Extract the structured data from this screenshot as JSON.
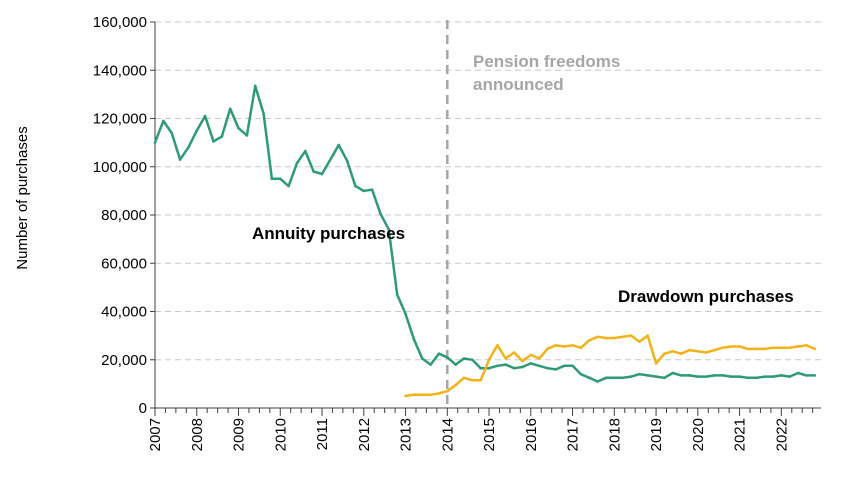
{
  "chart_data": {
    "type": "line",
    "ylabel": "Number of purchases",
    "ylim": [
      0,
      160000
    ],
    "y_ticks": [
      "0",
      "20,000",
      "40,000",
      "60,000",
      "80,000",
      "100,000",
      "120,000",
      "140,000",
      "160,000"
    ],
    "y_tick_values": [
      0,
      20000,
      40000,
      60000,
      80000,
      100000,
      120000,
      140000,
      160000
    ],
    "x_ticks": [
      "2007",
      "2008",
      "2009",
      "2010",
      "2011",
      "2012",
      "2013",
      "2014",
      "2015",
      "2016",
      "2017",
      "2018",
      "2019",
      "2020",
      "2021",
      "2022"
    ],
    "x_tick_values": [
      2007,
      2008,
      2009,
      2010,
      2011,
      2012,
      2013,
      2014,
      2015,
      2016,
      2017,
      2018,
      2019,
      2020,
      2021,
      2022
    ],
    "xlim": [
      2007,
      2022.95
    ],
    "grid": "horizontal dashed",
    "event": {
      "x": 2014,
      "label_line1": "Pension freedoms",
      "label_line2": "announced",
      "color": "#a6a6a6"
    },
    "series": [
      {
        "name": "Annuity purchases",
        "color": "#2e9b73",
        "x": [
          2007.0,
          2007.2,
          2007.4,
          2007.6,
          2007.8,
          2008.0,
          2008.2,
          2008.4,
          2008.6,
          2008.8,
          2009.0,
          2009.2,
          2009.4,
          2009.6,
          2009.8,
          2010.0,
          2010.2,
          2010.4,
          2010.6,
          2010.8,
          2011.0,
          2011.2,
          2011.4,
          2011.6,
          2011.8,
          2012.0,
          2012.2,
          2012.4,
          2012.6,
          2012.8,
          2013.0,
          2013.2,
          2013.4,
          2013.6,
          2013.8,
          2014.0,
          2014.2,
          2014.4,
          2014.6,
          2014.8,
          2015.0,
          2015.2,
          2015.4,
          2015.6,
          2015.8,
          2016.0,
          2016.2,
          2016.4,
          2016.6,
          2016.8,
          2017.0,
          2017.2,
          2017.4,
          2017.6,
          2017.8,
          2018.0,
          2018.2,
          2018.4,
          2018.6,
          2018.8,
          2019.0,
          2019.2,
          2019.4,
          2019.6,
          2019.8,
          2020.0,
          2020.2,
          2020.4,
          2020.6,
          2020.8,
          2021.0,
          2021.2,
          2021.4,
          2021.6,
          2021.8,
          2022.0,
          2022.2,
          2022.4,
          2022.6,
          2022.8
        ],
        "values": [
          110000,
          119000,
          114000,
          103000,
          108000,
          115000,
          121000,
          110500,
          112500,
          124000,
          116000,
          113000,
          133500,
          122000,
          95000,
          95000,
          92000,
          101500,
          106500,
          98000,
          97000,
          103000,
          109000,
          102500,
          92000,
          90000,
          90500,
          80500,
          74000,
          47000,
          39000,
          28500,
          20500,
          18000,
          22500,
          21000,
          18000,
          20500,
          20000,
          16500,
          16500,
          17500,
          18000,
          16500,
          17000,
          18500,
          17500,
          16500,
          16000,
          17500,
          17500,
          14000,
          12500,
          11000,
          12500,
          12500,
          12500,
          13000,
          14000,
          13500,
          13000,
          12500,
          14500,
          13500,
          13500,
          13000,
          13000,
          13500,
          13500,
          13000,
          13000,
          12500,
          12500,
          13000,
          13000,
          13500,
          13000,
          14500,
          13500,
          13500
        ]
      },
      {
        "name": "Drawdown purchases",
        "color": "#f2b318",
        "x": [
          2013.0,
          2013.2,
          2013.4,
          2013.6,
          2013.8,
          2014.0,
          2014.2,
          2014.4,
          2014.6,
          2014.8,
          2015.0,
          2015.2,
          2015.4,
          2015.6,
          2015.8,
          2016.0,
          2016.2,
          2016.4,
          2016.6,
          2016.8,
          2017.0,
          2017.2,
          2017.4,
          2017.6,
          2017.8,
          2018.0,
          2018.2,
          2018.4,
          2018.6,
          2018.8,
          2019.0,
          2019.2,
          2019.4,
          2019.6,
          2019.8,
          2020.0,
          2020.2,
          2020.4,
          2020.6,
          2020.8,
          2021.0,
          2021.2,
          2021.4,
          2021.6,
          2021.8,
          2022.0,
          2022.2,
          2022.4,
          2022.6,
          2022.8
        ],
        "values": [
          5000,
          5500,
          5500,
          5500,
          6000,
          7000,
          9500,
          12500,
          11500,
          11500,
          20000,
          26000,
          20500,
          23000,
          19500,
          22000,
          20500,
          24500,
          26000,
          25500,
          26000,
          25000,
          28000,
          29500,
          29000,
          29000,
          29500,
          30000,
          27500,
          30000,
          18500,
          22500,
          23500,
          22500,
          24000,
          23500,
          23000,
          24000,
          25000,
          25500,
          25500,
          24500,
          24500,
          24500,
          25000,
          25000,
          25000,
          25500,
          26000,
          24500
        ]
      }
    ]
  }
}
